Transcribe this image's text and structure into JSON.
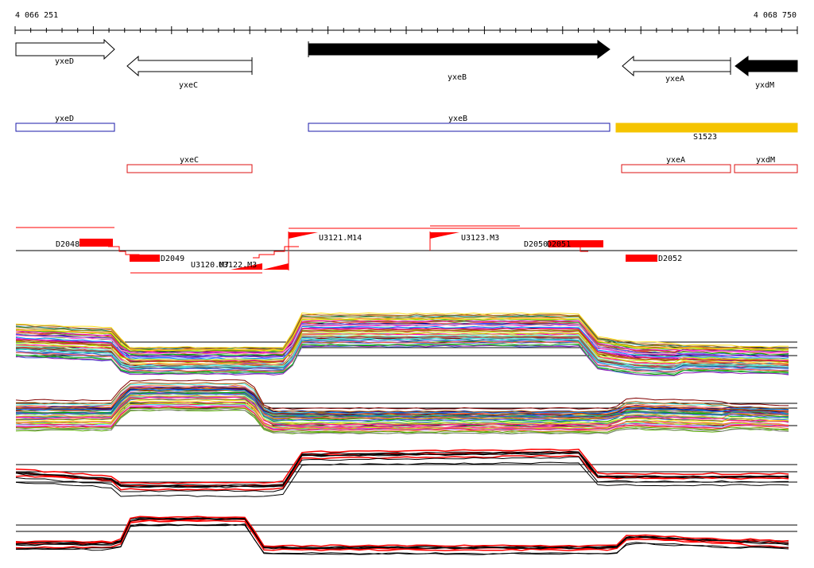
{
  "axis": {
    "start_label": "4 066 251",
    "end_label": "4 068 750"
  },
  "genes": [
    {
      "label": "yxeD",
      "strand": "+",
      "fill": "white"
    },
    {
      "label": "yxeC",
      "strand": "-",
      "fill": "white"
    },
    {
      "label": "yxeB",
      "strand": "+",
      "fill": "black"
    },
    {
      "label": "yxeA",
      "strand": "-",
      "fill": "white"
    },
    {
      "label": "yxdM",
      "strand": "-",
      "fill": "black"
    }
  ],
  "annotations_plus": [
    {
      "label": "yxeD",
      "color": "#1a1aa8"
    },
    {
      "label": "yxeB",
      "color": "#1a1aa8"
    },
    {
      "label": "S1523",
      "color": "#f5c400"
    }
  ],
  "annotations_minus": [
    {
      "label": "yxeC",
      "color": "#d11"
    },
    {
      "label": "yxeA",
      "color": "#d11"
    },
    {
      "label": "yxdM",
      "color": "#d11"
    }
  ],
  "features": [
    {
      "label": "D2048"
    },
    {
      "label": "D2049"
    },
    {
      "label": "U3120.M7"
    },
    {
      "label": "U3122.M3"
    },
    {
      "label": "U3121.M14"
    },
    {
      "label": "U3123.M3"
    },
    {
      "label": "D2050"
    },
    {
      "label": "D2051"
    },
    {
      "label": "D2052"
    }
  ],
  "colors": {
    "feature": "#ff0000",
    "axis": "#000000"
  }
}
